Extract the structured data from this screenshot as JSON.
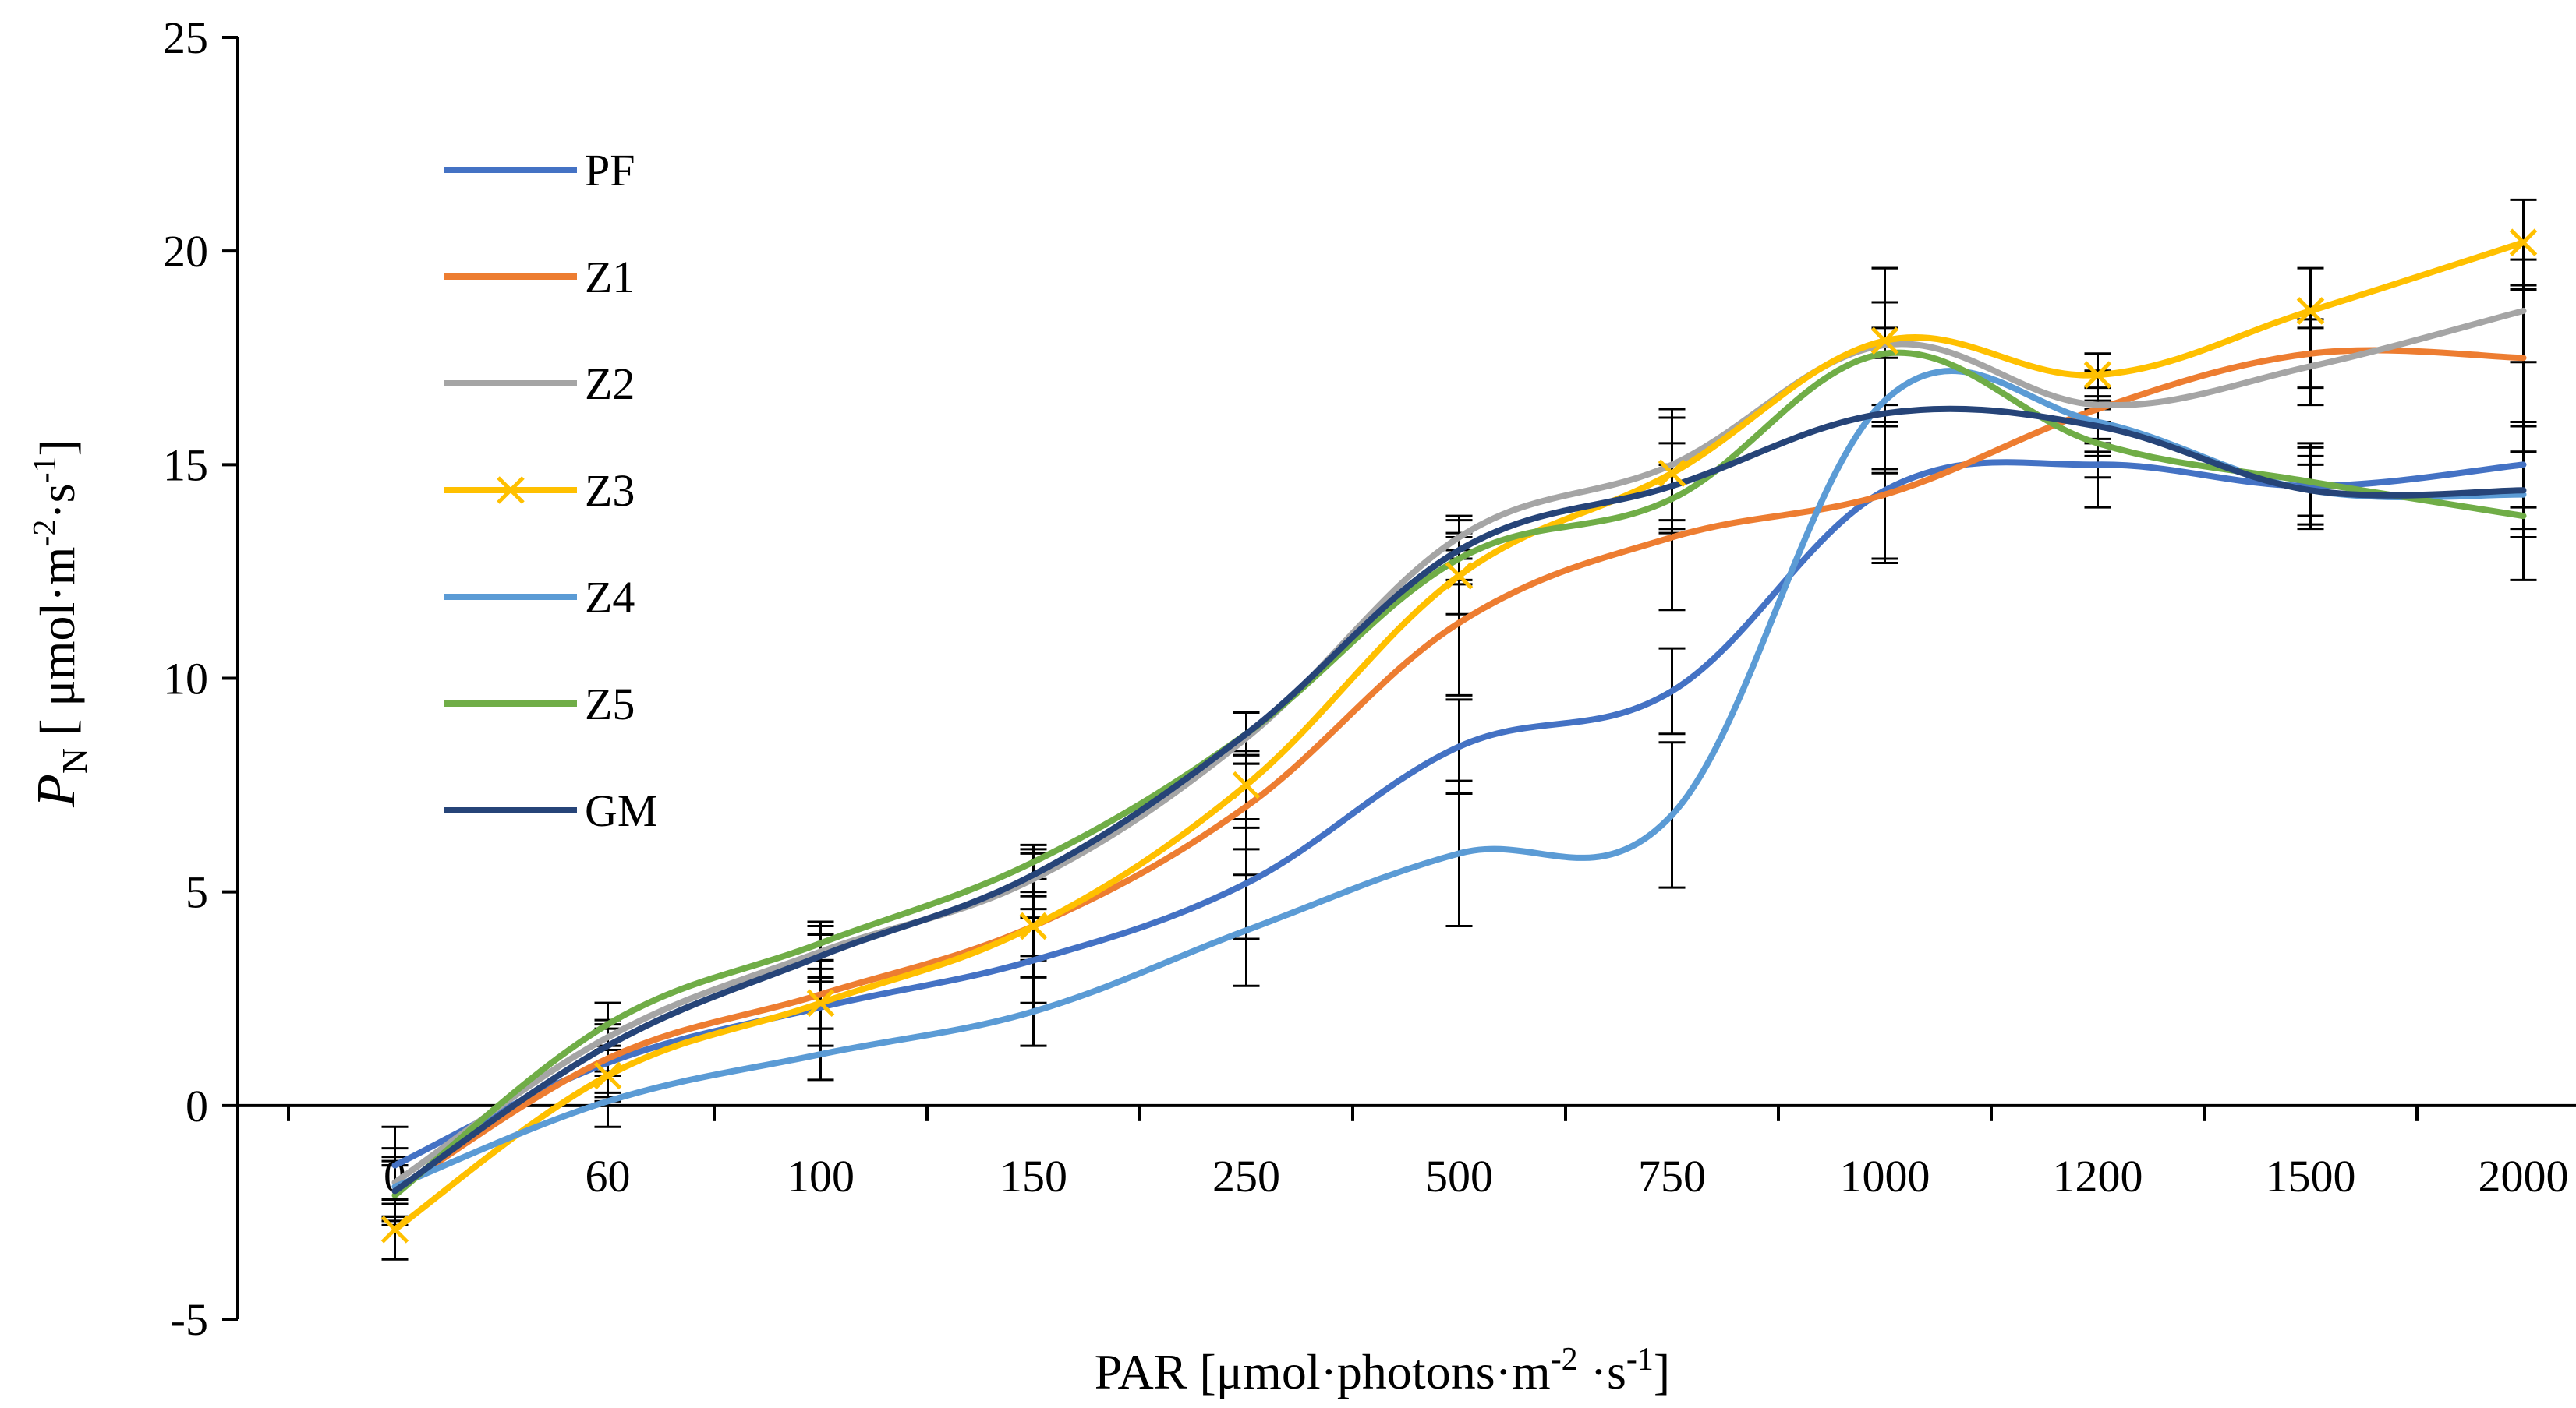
{
  "chart_data": {
    "type": "line",
    "title": "",
    "xlabel": {
      "main": "PAR [μmol·photons·m",
      "sup1": "-2",
      "mid": " ·s",
      "sup2": "-1",
      "end": "]"
    },
    "ylabel": {
      "symbol": "P",
      "subscript": "N",
      "unit_main": " [ μmol·m",
      "sup1": "-2",
      "mid": "·s",
      "sup2": "-1",
      "end": "]"
    },
    "categories": [
      "0",
      "60",
      "100",
      "150",
      "250",
      "500",
      "750",
      "1000",
      "1200",
      "1500",
      "2000"
    ],
    "ylim": [
      -5,
      25
    ],
    "yticks": [
      -5,
      0,
      5,
      10,
      15,
      20,
      25
    ],
    "series": [
      {
        "name": "PF",
        "color": "#4472C4",
        "marker": "none",
        "values": [
          -1.4,
          1.0,
          2.3,
          3.4,
          5.2,
          8.4,
          9.7,
          14.4,
          15.0,
          14.5,
          15.0
        ],
        "errors": [
          0.9,
          0.8,
          0.9,
          1.0,
          1.3,
          1.1,
          1.0,
          1.6,
          1.0,
          1.0,
          1.0
        ]
      },
      {
        "name": "Z1",
        "color": "#ED7D31",
        "marker": "none",
        "values": [
          -2.0,
          1.1,
          2.6,
          4.2,
          7.0,
          11.3,
          13.3,
          14.3,
          16.3,
          17.6,
          17.5
        ],
        "errors": [
          0.7,
          0.8,
          0.8,
          0.8,
          1.0,
          1.7,
          1.7,
          1.6,
          0.8,
          0.8,
          1.6
        ]
      },
      {
        "name": "Z2",
        "color": "#A5A5A5",
        "marker": "none",
        "values": [
          -1.8,
          1.6,
          3.6,
          5.3,
          8.6,
          13.3,
          15.0,
          17.8,
          16.4,
          17.3,
          18.6
        ],
        "errors": [
          0.8,
          0.8,
          0.7,
          0.7,
          0.6,
          0.5,
          1.3,
          1.8,
          0.8,
          0.9,
          1.2
        ]
      },
      {
        "name": "Z3",
        "color": "#FFC000",
        "marker": "x",
        "values": [
          -2.9,
          0.7,
          2.4,
          4.2,
          7.5,
          12.4,
          14.8,
          17.9,
          17.1,
          18.6,
          20.2
        ],
        "errors": [
          0.7,
          0.6,
          0.6,
          0.7,
          0.8,
          0.9,
          1.3,
          1.7,
          0.5,
          1.0,
          1.0
        ]
      },
      {
        "name": "Z4",
        "color": "#5B9BD5",
        "marker": "none",
        "values": [
          -1.9,
          0.1,
          1.2,
          2.2,
          4.1,
          5.9,
          6.8,
          16.5,
          16.0,
          14.4,
          14.3
        ],
        "errors": [
          0.7,
          0.6,
          0.6,
          0.8,
          1.3,
          1.7,
          1.7,
          1.7,
          0.8,
          0.8,
          1.0
        ]
      },
      {
        "name": "Z5",
        "color": "#70AD47",
        "marker": "none",
        "values": [
          -2.1,
          1.9,
          3.8,
          5.7,
          8.7,
          12.8,
          14.2,
          17.6,
          15.5,
          14.6,
          13.8
        ],
        "errors": [
          0.7,
          0.5,
          0.4,
          0.4,
          0.5,
          0.6,
          0.8,
          1.2,
          0.8,
          0.8,
          1.5
        ]
      },
      {
        "name": "GM",
        "color": "#264478",
        "marker": "none",
        "values": [
          -2.0,
          1.4,
          3.5,
          5.4,
          8.7,
          13.0,
          14.5,
          16.2,
          15.9,
          14.4,
          14.4
        ],
        "errors": [
          0.6,
          0.6,
          0.5,
          0.5,
          0.5,
          0.7,
          1.0,
          1.3,
          0.6,
          0.6,
          0.9
        ]
      }
    ],
    "legend": "top-left",
    "grid": false
  }
}
